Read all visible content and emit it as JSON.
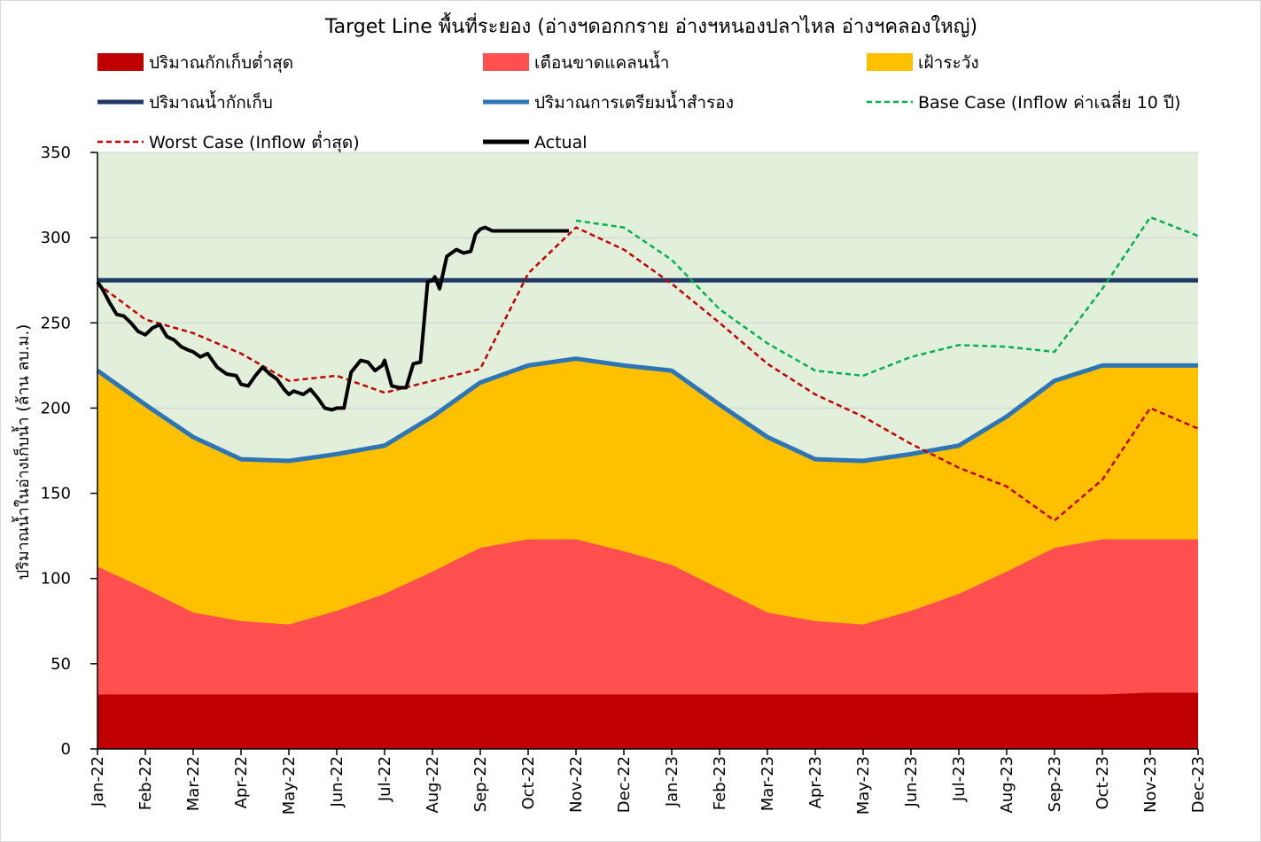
{
  "chart_data": {
    "type": "area",
    "title": "Target Line พื้นที่ระยอง (อ่างฯดอกกราย อ่างฯหนองปลาไหล อ่างฯคลองใหญ่)",
    "xlabel": "",
    "ylabel": "ปริมาณน้ำในอ่างเก็บน้ำ (ล้าน ลบ.ม.)",
    "ylim": [
      0,
      350
    ],
    "yticks": [
      0,
      50,
      100,
      150,
      200,
      250,
      300,
      350
    ],
    "grid": true,
    "legend_position": "top",
    "categories": [
      "Jan-22",
      "Feb-22",
      "Mar-22",
      "Apr-22",
      "May-22",
      "Jun-22",
      "Jul-22",
      "Aug-22",
      "Sep-22",
      "Oct-22",
      "Nov-22",
      "Dec-22",
      "Jan-23",
      "Feb-23",
      "Mar-23",
      "Apr-23",
      "May-23",
      "Jun-23",
      "Jul-23",
      "Aug-23",
      "Sep-23",
      "Oct-23",
      "Nov-23",
      "Dec-23"
    ],
    "areas": [
      {
        "name": "ปริมาณกักเก็บต่ำสุด",
        "color": "#c00000",
        "values": [
          32,
          32,
          32,
          32,
          32,
          32,
          32,
          32,
          32,
          32,
          32,
          32,
          32,
          32,
          32,
          32,
          32,
          32,
          32,
          32,
          32,
          32,
          33,
          33
        ]
      },
      {
        "name": "เตือนขาดแคลนน้ำ",
        "color": "#ff4f4f",
        "values": [
          107,
          94,
          80,
          75,
          73,
          81,
          91,
          104,
          118,
          123,
          123,
          116,
          108,
          94,
          80,
          75,
          73,
          81,
          91,
          104,
          118,
          123,
          123,
          123
        ]
      },
      {
        "name": "เฝ้าระวัง",
        "color": "#ffc000",
        "values": [
          222,
          202,
          183,
          170,
          169,
          173,
          178,
          195,
          215,
          225,
          229,
          225,
          222,
          202,
          183,
          170,
          169,
          173,
          178,
          195,
          216,
          225,
          225,
          225
        ]
      }
    ],
    "above_area_color": "#e2efda",
    "lines": [
      {
        "name": "ปริมาณน้ำกักเก็บ",
        "color": "#1f3864",
        "style": "solid",
        "width": 5,
        "values": [
          275,
          275,
          275,
          275,
          275,
          275,
          275,
          275,
          275,
          275,
          275,
          275,
          275,
          275,
          275,
          275,
          275,
          275,
          275,
          275,
          275,
          275,
          275,
          275
        ]
      },
      {
        "name": "ปริมาณการเตรียมน้ำสำรอง",
        "color": "#2e75b6",
        "style": "solid",
        "width": 5,
        "values": [
          222,
          202,
          183,
          170,
          169,
          173,
          178,
          195,
          215,
          225,
          229,
          225,
          222,
          202,
          183,
          170,
          169,
          173,
          178,
          195,
          216,
          225,
          225,
          225
        ]
      },
      {
        "name": "Base Case (Inflow ค่าเฉลี่ย 10 ปี)",
        "color": "#00b050",
        "style": "dashed",
        "width": 2.5,
        "x": [
          10,
          11,
          12,
          13,
          14,
          15,
          16,
          17,
          18,
          19,
          20,
          21,
          22,
          23
        ],
        "values": [
          310,
          306,
          287,
          258,
          238,
          222,
          219,
          230,
          237,
          236,
          233,
          270,
          312,
          301
        ]
      },
      {
        "name": "Worst Case (Inflow ต่ำสุด)",
        "color": "#c00000",
        "style": "dashed",
        "width": 2.5,
        "x": [
          0,
          1,
          2,
          3,
          4,
          5,
          6,
          7,
          8,
          9,
          10,
          11,
          12,
          13,
          14,
          15,
          16,
          17,
          18,
          19,
          20,
          21,
          22,
          23
        ],
        "values": [
          273,
          252,
          244,
          232,
          216,
          219,
          209,
          216,
          223,
          279,
          306,
          293,
          273,
          250,
          226,
          208,
          195,
          179,
          165,
          154,
          134,
          158,
          200,
          188
        ]
      },
      {
        "name": "Actual",
        "color": "#000000",
        "style": "solid",
        "width": 4,
        "x": [
          0,
          0.1,
          0.25,
          0.4,
          0.55,
          0.7,
          0.85,
          1,
          1.15,
          1.3,
          1.45,
          1.6,
          1.75,
          1.9,
          2,
          2.15,
          2.3,
          2.5,
          2.7,
          2.9,
          3,
          3.15,
          3.3,
          3.45,
          3.6,
          3.75,
          3.9,
          4,
          4.1,
          4.3,
          4.45,
          4.6,
          4.75,
          4.9,
          5,
          5.15,
          5.3,
          5.5,
          5.65,
          5.8,
          5.95,
          6,
          6.15,
          6.3,
          6.45,
          6.6,
          6.75,
          6.9,
          7,
          7.05,
          7.15,
          7.3,
          7.5,
          7.65,
          7.8,
          7.9,
          8,
          8.1,
          8.25,
          8.35,
          8.5,
          8.6,
          8.7,
          8.85,
          9,
          9.1,
          9.2,
          9.35,
          9.5,
          9.65,
          9.75,
          9.85
        ],
        "values": [
          274,
          270,
          262,
          255,
          254,
          250,
          245,
          243,
          247,
          249,
          242,
          240,
          236,
          234,
          233,
          230,
          232,
          224,
          220,
          219,
          214,
          213,
          219,
          224,
          220,
          217,
          211,
          208,
          210,
          208,
          211,
          206,
          200,
          199,
          200,
          200,
          221,
          228,
          227,
          222,
          225,
          228,
          213,
          212,
          212,
          226,
          227,
          274,
          275,
          277,
          270,
          289,
          293,
          291,
          292,
          302,
          305,
          306,
          304,
          304,
          304,
          304,
          304,
          304,
          304,
          304,
          304,
          304,
          304,
          304,
          304,
          304
        ]
      }
    ]
  }
}
